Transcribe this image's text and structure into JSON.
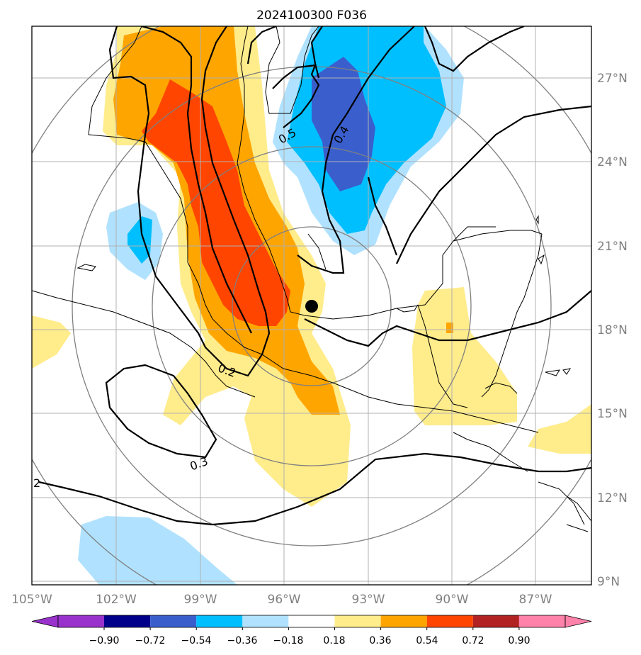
{
  "title": "2024100300 F036",
  "lat_labels": [
    "27°N",
    "24°N",
    "21°N",
    "18°N",
    "15°N",
    "12°N",
    "9°N"
  ],
  "lon_labels": [
    "105°W",
    "102°W",
    "99°W",
    "96°W",
    "93°W",
    "90°W",
    "87°W"
  ],
  "contour_labels": [
    "0.5",
    "0.4",
    "0.2",
    "0.3",
    "2"
  ],
  "colorbar": {
    "ticks": [
      "−0.90",
      "−0.72",
      "−0.54",
      "−0.36",
      "−0.18",
      "0.18",
      "0.36",
      "0.54",
      "0.72",
      "0.90"
    ],
    "colors": [
      "#9932cc",
      "#00008b",
      "#3a5fcd",
      "#00bfff",
      "#b0e2ff",
      "#ffffff",
      "#ffec8b",
      "#ffa500",
      "#ff4500",
      "#b22222",
      "#ff82ab"
    ]
  },
  "shading_colors": {
    "pos_018": "#ffec8b",
    "pos_036": "#ffa500",
    "pos_054": "#ff4500",
    "neg_018": "#b0e2ff",
    "neg_036": "#00bfff",
    "neg_054": "#3a5fcd"
  },
  "marker": "black dot near 95°W, 18.7°N"
}
